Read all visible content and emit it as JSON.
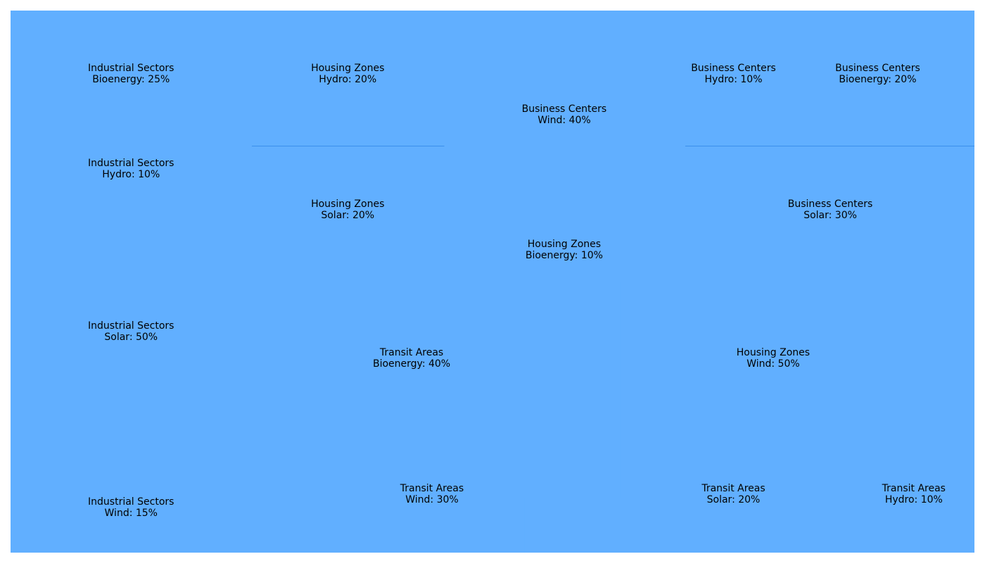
{
  "chart_data": {
    "type": "treemap",
    "color": "#61afff",
    "divider_color": "#3a8fea",
    "groups": [
      {
        "name": "Industrial Sectors",
        "total": 100,
        "items": [
          {
            "label": "Bioenergy: 25%",
            "source": "Bioenergy",
            "value": 25
          },
          {
            "label": "Hydro: 10%",
            "source": "Hydro",
            "value": 10
          },
          {
            "label": "Solar: 50%",
            "source": "Solar",
            "value": 50
          },
          {
            "label": "Wind: 15%",
            "source": "Wind",
            "value": 15
          }
        ]
      },
      {
        "name": "Housing Zones",
        "total": 100,
        "items": [
          {
            "label": "Hydro: 20%",
            "source": "Hydro",
            "value": 20
          },
          {
            "label": "Solar: 20%",
            "source": "Solar",
            "value": 20
          },
          {
            "label": "Bioenergy: 10%",
            "source": "Bioenergy",
            "value": 10
          },
          {
            "label": "Wind: 50%",
            "source": "Wind",
            "value": 50
          }
        ]
      },
      {
        "name": "Business Centers",
        "total": 100,
        "items": [
          {
            "label": "Wind: 40%",
            "source": "Wind",
            "value": 40
          },
          {
            "label": "Hydro: 10%",
            "source": "Hydro",
            "value": 10
          },
          {
            "label": "Bioenergy: 20%",
            "source": "Bioenergy",
            "value": 20
          },
          {
            "label": "Solar: 30%",
            "source": "Solar",
            "value": 30
          }
        ]
      },
      {
        "name": "Transit Areas",
        "total": 100,
        "items": [
          {
            "label": "Bioenergy: 40%",
            "source": "Bioenergy",
            "value": 40
          },
          {
            "label": "Wind: 30%",
            "source": "Wind",
            "value": 30
          },
          {
            "label": "Solar: 20%",
            "source": "Solar",
            "value": 20
          },
          {
            "label": "Hydro: 10%",
            "source": "Hydro",
            "value": 10
          }
        ]
      }
    ]
  }
}
